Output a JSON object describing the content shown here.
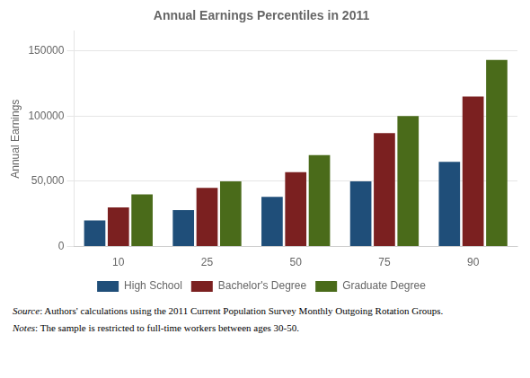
{
  "chart_data": {
    "type": "bar",
    "title": "Annual Earnings Percentiles in 2011",
    "ylabel": "Annual Earnings",
    "categories": [
      10,
      25,
      50,
      75,
      90
    ],
    "series": [
      {
        "name": "High School",
        "color": "#1F4E79",
        "values": [
          20000,
          28000,
          38000,
          50000,
          65000
        ]
      },
      {
        "name": "Bachelor's Degree",
        "color": "#7B2020",
        "values": [
          30000,
          45000,
          57000,
          87000,
          115000
        ]
      },
      {
        "name": "Graduate Degree",
        "color": "#4A6B1A",
        "values": [
          40000,
          50000,
          70000,
          100000,
          143000
        ]
      }
    ],
    "ylim": [
      0,
      165000
    ],
    "yticks": [
      0,
      {
        "value": 50000,
        "label": "50,000"
      },
      100000,
      150000
    ],
    "grid": true,
    "legend": "bottom",
    "annotations": [
      "Source: Authors' calculations using the 2011 Current Population Survey Monthly Outgoing Rotation Groups.",
      "Notes: The sample is restricted to full-time workers between ages 30-50."
    ]
  }
}
